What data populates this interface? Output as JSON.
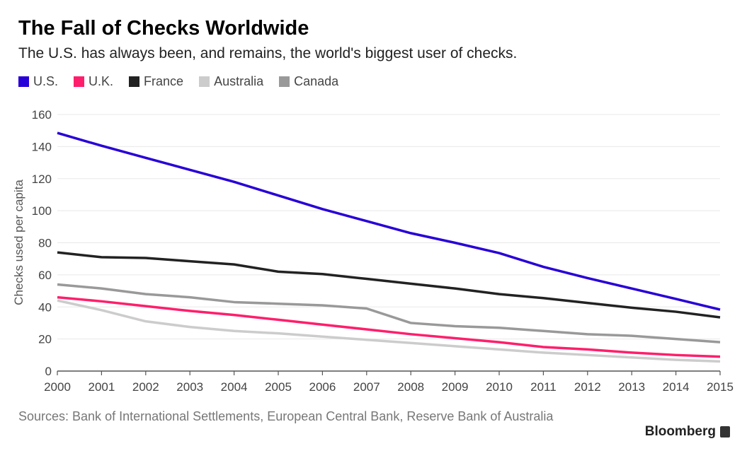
{
  "title": "The Fall of Checks Worldwide",
  "subtitle": "The U.S. has always been, and remains, the world's biggest user of checks.",
  "source": "Sources: Bank of International Settlements, European Central Bank, Reserve Bank of Australia",
  "brand": "Bloomberg",
  "chart_data": {
    "type": "line",
    "title": "The Fall of Checks Worldwide",
    "xlabel": "",
    "ylabel": "Checks used per capita",
    "ylim": [
      0,
      160
    ],
    "yticks": [
      0,
      20,
      40,
      60,
      80,
      100,
      120,
      140,
      160
    ],
    "grid": true,
    "legend_placement": "top-left",
    "x": [
      2000,
      2001,
      2002,
      2003,
      2004,
      2005,
      2006,
      2007,
      2008,
      2009,
      2010,
      2011,
      2012,
      2013,
      2014,
      2015
    ],
    "series": [
      {
        "name": "U.S.",
        "color": "#2800d7",
        "values": [
          148.5,
          140.5,
          133,
          125.5,
          118,
          109.5,
          101,
          93.5,
          86,
          80,
          73.6,
          65,
          58,
          51.5,
          45,
          38.3
        ]
      },
      {
        "name": "U.K.",
        "color": "#ff1e6c",
        "values": [
          46,
          43.5,
          40.5,
          37.5,
          35,
          32,
          29,
          26,
          23,
          20.5,
          18,
          15,
          13.5,
          11.5,
          10,
          9
        ]
      },
      {
        "name": "France",
        "color": "#222222",
        "values": [
          74,
          71,
          70.5,
          68.5,
          66.5,
          62,
          60.5,
          57.5,
          54.5,
          51.5,
          48,
          45.5,
          42.5,
          39.5,
          37,
          33.5
        ]
      },
      {
        "name": "Australia",
        "color": "#cccccc",
        "values": [
          44,
          38,
          31,
          27.5,
          25,
          23.5,
          21.5,
          19.5,
          17.5,
          15.5,
          13.5,
          11.5,
          10,
          8.5,
          7,
          6
        ]
      },
      {
        "name": "Canada",
        "color": "#999999",
        "values": [
          54,
          51.5,
          48,
          46,
          43,
          42,
          41,
          39,
          30,
          28,
          27,
          25,
          23,
          22,
          20,
          18
        ]
      }
    ]
  }
}
